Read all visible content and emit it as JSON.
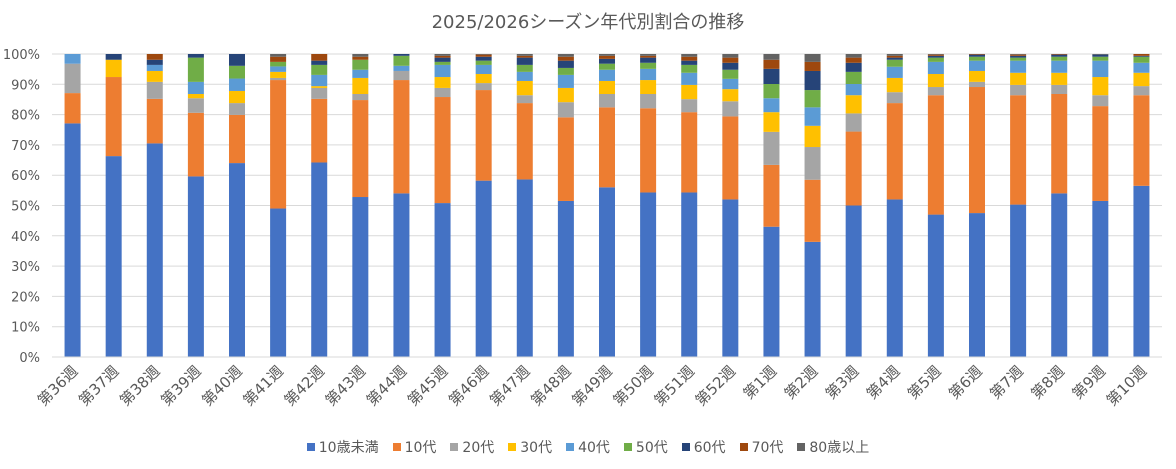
{
  "chart_data": {
    "type": "bar",
    "stacked": "percent",
    "title": "2025/2026シーズン年代別割合の推移",
    "xlabel": "",
    "ylabel": "",
    "ylim": [
      0,
      100
    ],
    "yticks": [
      "0%",
      "10%",
      "20%",
      "30%",
      "40%",
      "50%",
      "60%",
      "70%",
      "80%",
      "90%",
      "100%"
    ],
    "grid": true,
    "legend": "bottom",
    "categories": [
      "第36週",
      "第37週",
      "第38週",
      "第39週",
      "第40週",
      "第41週",
      "第42週",
      "第43週",
      "第44週",
      "第45週",
      "第46週",
      "第47週",
      "第48週",
      "第49週",
      "第50週",
      "第51週",
      "第52週",
      "第1週",
      "第2週",
      "第3週",
      "第4週",
      "第5週",
      "第6週",
      "第7週",
      "第8週",
      "第9週",
      "第10週"
    ],
    "series": [
      {
        "name": "10歳未満",
        "color": "#4472C4",
        "values": [
          77.1,
          66.3,
          70.5,
          59.6,
          64.0,
          49.0,
          64.2,
          52.8,
          54.0,
          50.8,
          58.2,
          58.6,
          51.5,
          56.0,
          54.3,
          54.3,
          52.0,
          43.0,
          38.0,
          50.0,
          52.0,
          47.0,
          47.5,
          50.3,
          54.0,
          51.5,
          56.5
        ]
      },
      {
        "name": "10代",
        "color": "#ED7D31",
        "values": [
          10.0,
          26.1,
          14.7,
          21.0,
          15.9,
          42.4,
          21.0,
          32.0,
          37.4,
          35.0,
          29.9,
          25.2,
          27.6,
          26.4,
          27.8,
          26.5,
          27.4,
          20.4,
          20.5,
          24.4,
          31.8,
          39.4,
          41.6,
          36.1,
          32.8,
          31.3,
          29.9
        ]
      },
      {
        "name": "20代",
        "color": "#A5A5A5",
        "values": [
          9.7,
          0,
          5.6,
          4.8,
          3.9,
          0.7,
          3.6,
          2.0,
          3.0,
          3.0,
          2.3,
          2.6,
          5.0,
          4.4,
          4.7,
          4.3,
          5.0,
          10.9,
          10.8,
          6.0,
          3.6,
          2.7,
          1.7,
          3.4,
          3.0,
          3.6,
          3.0
        ]
      },
      {
        "name": "30代",
        "color": "#FFC000",
        "values": [
          0,
          5.7,
          3.6,
          1.4,
          4.0,
          2.0,
          0.6,
          5.3,
          0,
          3.6,
          3.0,
          4.7,
          4.7,
          4.3,
          4.6,
          4.7,
          4.0,
          6.5,
          7.0,
          6.0,
          4.7,
          4.3,
          3.6,
          4.0,
          4.0,
          6.0,
          4.4
        ]
      },
      {
        "name": "40代",
        "color": "#5B9BD5",
        "values": [
          3.2,
          0,
          2.0,
          4.0,
          4.1,
          1.8,
          3.7,
          2.7,
          1.7,
          4.0,
          3.0,
          3.0,
          4.3,
          3.7,
          3.7,
          4.0,
          3.4,
          4.6,
          6.1,
          3.7,
          3.7,
          4.0,
          3.4,
          4.0,
          4.0,
          5.4,
          3.3
        ]
      },
      {
        "name": "50代",
        "color": "#70AD47",
        "values": [
          0,
          0,
          0,
          8.0,
          4.2,
          1.5,
          3.3,
          3.3,
          3.3,
          1.0,
          1.4,
          2.3,
          2.3,
          2.0,
          2.0,
          2.6,
          3.0,
          4.7,
          5.7,
          4.0,
          2.3,
          1.4,
          1.3,
          1.0,
          1.3,
          1.3,
          2.0
        ]
      },
      {
        "name": "60代",
        "color": "#264478",
        "values": [
          0,
          1.9,
          1.7,
          1.2,
          3.9,
          0,
          1.4,
          0,
          0.6,
          1.4,
          1.3,
          2.4,
          2.4,
          1.6,
          1.7,
          1.4,
          2.3,
          5.0,
          6.3,
          3.0,
          0.7,
          0.6,
          0.7,
          0.6,
          0.7,
          0.7,
          0.3
        ]
      },
      {
        "name": "70代",
        "color": "#9E480E",
        "values": [
          0,
          0,
          1.9,
          0,
          0,
          1.7,
          2.2,
          1.0,
          0,
          0.6,
          0.7,
          0.6,
          1.3,
          1.0,
          0.6,
          1.3,
          1.7,
          3.0,
          3.0,
          1.7,
          0.6,
          0.4,
          0.2,
          0.4,
          0.2,
          0,
          0.6
        ]
      },
      {
        "name": "80歳以上",
        "color": "#636363",
        "values": [
          0,
          0,
          0,
          0,
          0,
          0.9,
          0,
          0.9,
          0,
          0.6,
          0.2,
          0.6,
          0.9,
          0.6,
          0.6,
          0.9,
          1.2,
          1.9,
          2.6,
          1.2,
          0.6,
          0.2,
          0,
          0.2,
          0,
          0.2,
          0
        ]
      }
    ]
  }
}
